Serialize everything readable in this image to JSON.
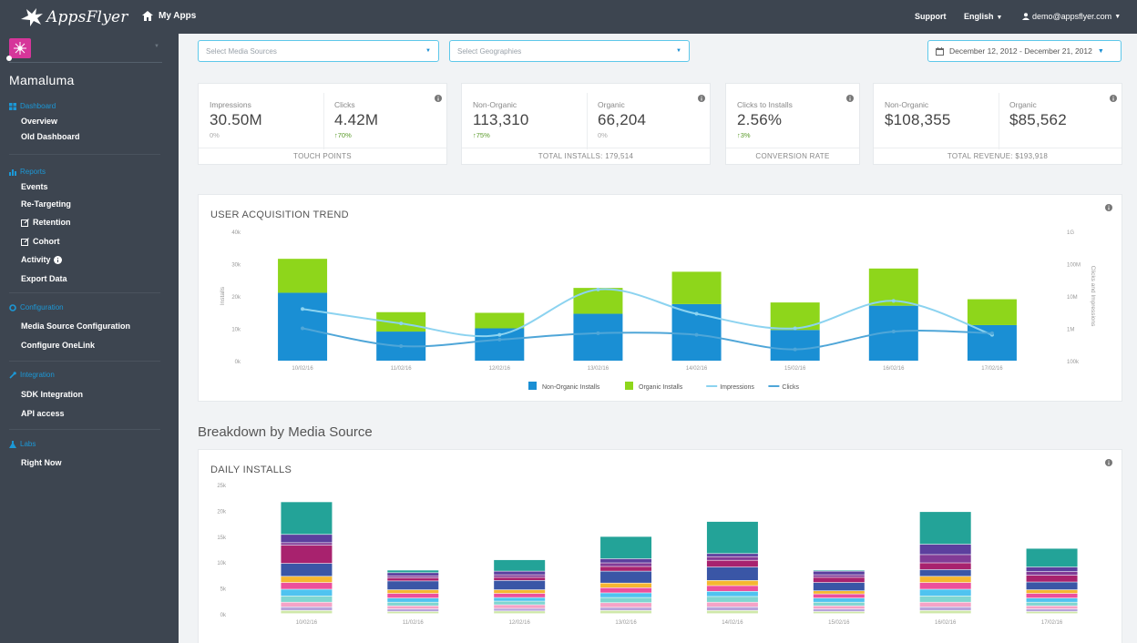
{
  "topbar": {
    "logo_text": "AppsFlyer",
    "my_apps": "My Apps",
    "support": "Support",
    "language": "English",
    "user_email": "demo@appsflyer.com"
  },
  "sidebar": {
    "app_name": "Mamaluma",
    "sections": [
      {
        "title": "Dashboard",
        "icon": "dashboard-icon",
        "items": [
          "Overview",
          "Old Dashboard"
        ]
      },
      {
        "title": "Reports",
        "icon": "bar-chart-icon",
        "items": [
          "Events",
          "Re-Targeting",
          "Retention",
          "Cohort",
          "Activity",
          "Export Data"
        ]
      },
      {
        "title": "Configuration",
        "icon": "gear-icon",
        "items": [
          "Media Source Configuration",
          "Configure OneLink"
        ]
      },
      {
        "title": "Integration",
        "icon": "wrench-icon",
        "items": [
          "SDK Integration",
          "API access"
        ]
      },
      {
        "title": "Labs",
        "icon": "flask-icon",
        "items": [
          "Right Now"
        ]
      }
    ]
  },
  "filters": {
    "media_sources_placeholder": "Select Media Sources",
    "geographies_placeholder": "Select Geographies",
    "date_range": "December 12, 2012 - December 21, 2012"
  },
  "kpis": {
    "touch_points": {
      "impressions_label": "Impressions",
      "impressions_value": "30.50M",
      "impressions_change": "0%",
      "clicks_label": "Clicks",
      "clicks_value": "4.42M",
      "clicks_change": "70%",
      "footer": "TOUCH POINTS"
    },
    "installs": {
      "non_organic_label": "Non-Organic",
      "non_organic_value": "113,310",
      "non_organic_change": "75%",
      "organic_label": "Organic",
      "organic_value": "66,204",
      "organic_change": "0%",
      "footer": "TOTAL INSTALLS: 179,514"
    },
    "conversion": {
      "label": "Clicks to Installs",
      "value": "2.56%",
      "change": "3%",
      "footer": "CONVERSION RATE"
    },
    "revenue": {
      "non_organic_label": "Non-Organic",
      "non_organic_value": "$108,355",
      "organic_label": "Organic",
      "organic_value": "$85,562",
      "footer": "TOTAL REVENUE: $193,918"
    }
  },
  "trend_title": "USER ACQUISITION TREND",
  "breakdown_title": "Breakdown by Media Source",
  "daily_title": "DAILY INSTALLS",
  "chart_data": [
    {
      "type": "bar",
      "title": "USER ACQUISITION TREND",
      "stacked": true,
      "categories": [
        "10/02/16",
        "11/02/16",
        "12/02/16",
        "13/02/16",
        "14/02/16",
        "15/02/16",
        "16/02/16",
        "17/02/16"
      ],
      "ylabel": "Installs",
      "ylim": [
        0,
        40000
      ],
      "yticks": [
        "0k",
        "10k",
        "20k",
        "30k",
        "40k"
      ],
      "y2label": "Clicks and Impressions",
      "y2scale": "log",
      "y2ticks": [
        "100k",
        "1M",
        "10M",
        "100M",
        "1G"
      ],
      "series": [
        {
          "name": "Non-Organic Installs",
          "values": [
            21000,
            9000,
            10000,
            14500,
            17500,
            9500,
            17000,
            11000
          ],
          "color": "#1a8fd4"
        },
        {
          "name": "Organic Installs",
          "values": [
            10500,
            6000,
            4800,
            8000,
            10000,
            8500,
            11500,
            8000
          ],
          "color": "#8ed61b"
        },
        {
          "name": "Impressions",
          "type": "line",
          "values": [
            16000,
            11500,
            8000,
            22000,
            14500,
            10000,
            18500,
            8000
          ],
          "color": "#8cd3f0"
        },
        {
          "name": "Clicks",
          "type": "line",
          "values": [
            10000,
            4500,
            6500,
            8500,
            8000,
            3500,
            9000,
            8500
          ],
          "color": "#4fa6d8"
        }
      ],
      "legend": "bottom"
    },
    {
      "type": "bar",
      "title": "DAILY INSTALLS",
      "stacked": true,
      "categories": [
        "10/02/16",
        "11/02/16",
        "12/02/16",
        "13/02/16",
        "14/02/16",
        "15/02/16",
        "16/02/16",
        "17/02/16"
      ],
      "ylim": [
        0,
        25000
      ],
      "yticks": [
        "0k",
        "5k",
        "10k",
        "15k",
        "20k",
        "25k"
      ],
      "series": [
        {
          "values": [
            600,
            400,
            500,
            600,
            600,
            400,
            600,
            400
          ],
          "color": "#cfe8a9"
        },
        {
          "values": [
            700,
            500,
            500,
            600,
            700,
            500,
            700,
            500
          ],
          "color": "#b7a3dc"
        },
        {
          "values": [
            900,
            600,
            700,
            900,
            900,
            600,
            900,
            600
          ],
          "color": "#f5a3c7"
        },
        {
          "values": [
            1200,
            700,
            700,
            1000,
            1100,
            700,
            1200,
            700
          ],
          "color": "#7fd6d0"
        },
        {
          "values": [
            1300,
            800,
            700,
            900,
            1000,
            800,
            1300,
            800
          ],
          "color": "#4fc3f0"
        },
        {
          "values": [
            1300,
            900,
            800,
            1000,
            1100,
            800,
            1300,
            900
          ],
          "color": "#ec4f9c"
        },
        {
          "values": [
            1200,
            700,
            700,
            900,
            1000,
            600,
            1200,
            700
          ],
          "color": "#f5b731"
        },
        {
          "values": [
            2500,
            1700,
            1800,
            2300,
            2600,
            1600,
            1300,
            1500
          ],
          "color": "#3a56a6"
        },
        {
          "values": [
            3500,
            600,
            600,
            900,
            1300,
            1000,
            1300,
            1300
          ],
          "color": "#a8226e"
        },
        {
          "values": [
            500,
            400,
            500,
            700,
            700,
            500,
            1600,
            700
          ],
          "color": "#823b96"
        },
        {
          "values": [
            1600,
            600,
            700,
            800,
            600,
            700,
            2000,
            900
          ],
          "color": "#5c3f9e"
        },
        {
          "values": [
            6300,
            500,
            2200,
            4300,
            6200,
            200,
            6300,
            3600
          ],
          "color": "#23a398"
        }
      ]
    }
  ]
}
